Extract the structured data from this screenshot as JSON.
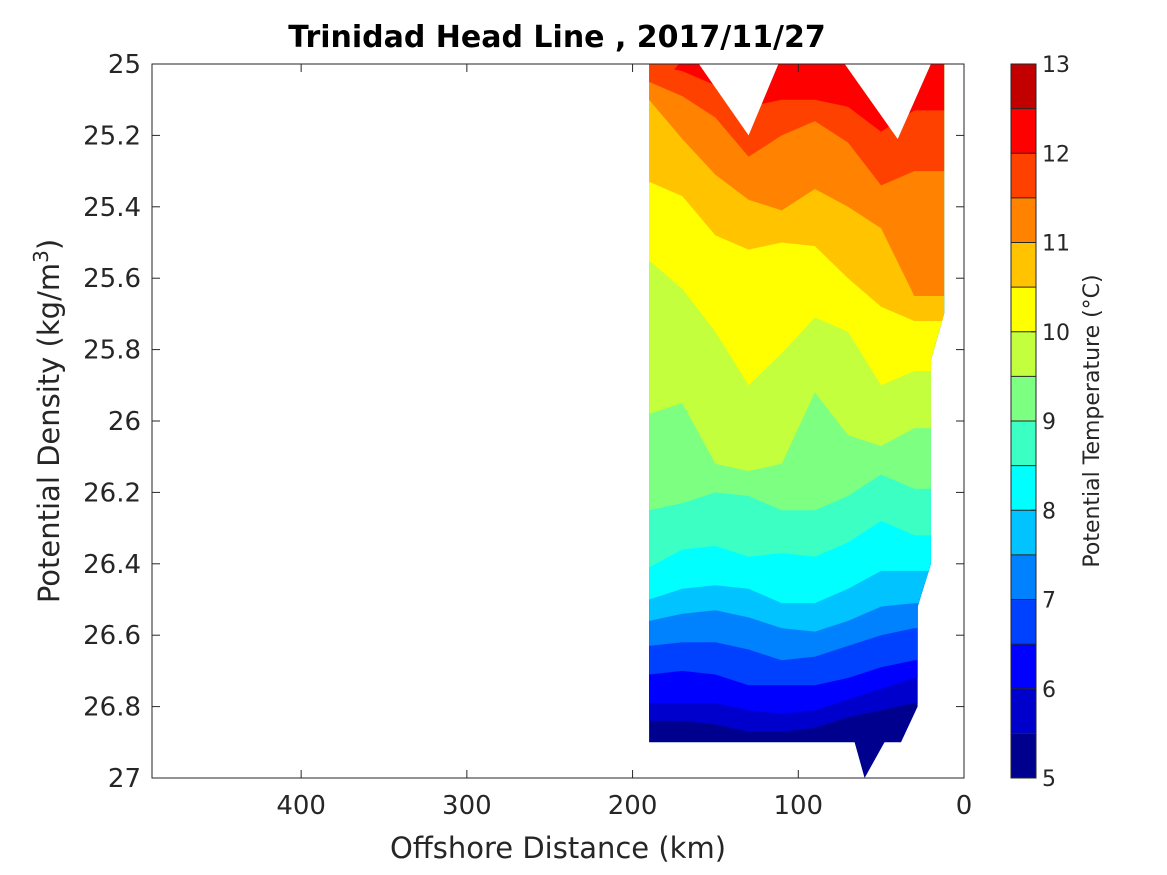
{
  "chart_data": {
    "type": "contour",
    "title": "Trinidad Head Line , 2017/11/27",
    "xlabel": "Offshore Distance (km)",
    "ylabel_main": "Potential Density (kg/m",
    "ylabel_sup": "3",
    "ylabel_close": ")",
    "x_reversed": true,
    "y_reversed": true,
    "xlim": [
      490,
      0
    ],
    "ylim": [
      25,
      27
    ],
    "xticks": [
      {
        "value": 400,
        "label": "400"
      },
      {
        "value": 300,
        "label": "300"
      },
      {
        "value": 200,
        "label": "200"
      },
      {
        "value": 100,
        "label": "100"
      },
      {
        "value": 0,
        "label": "0"
      }
    ],
    "yticks": [
      {
        "value": 25,
        "label": "25"
      },
      {
        "value": 25.2,
        "label": "25.2"
      },
      {
        "value": 25.4,
        "label": "25.4"
      },
      {
        "value": 25.6,
        "label": "25.6"
      },
      {
        "value": 25.8,
        "label": "25.8"
      },
      {
        "value": 26,
        "label": "26"
      },
      {
        "value": 26.2,
        "label": "26.2"
      },
      {
        "value": 26.4,
        "label": "26.4"
      },
      {
        "value": 26.6,
        "label": "26.6"
      },
      {
        "value": 26.8,
        "label": "26.8"
      },
      {
        "value": 27,
        "label": "27"
      }
    ],
    "colorbar": {
      "label": "Potential Temperature (°C)",
      "range": [
        5,
        13
      ],
      "levels": [
        5,
        5.5,
        6,
        6.5,
        7,
        7.5,
        8,
        8.5,
        9,
        9.5,
        10,
        10.5,
        11,
        11.5,
        12,
        12.5,
        13
      ],
      "colors": [
        "#00008f",
        "#0000cd",
        "#0000ff",
        "#0041ff",
        "#0082ff",
        "#00c3ff",
        "#00ffff",
        "#3cffc3",
        "#7dff82",
        "#c3ff3c",
        "#ffff00",
        "#ffc300",
        "#ff8200",
        "#ff4100",
        "#ff0000",
        "#c30000"
      ],
      "ticks": [
        {
          "value": 5,
          "label": "5"
        },
        {
          "value": 6,
          "label": "6"
        },
        {
          "value": 7,
          "label": "7"
        },
        {
          "value": 8,
          "label": "8"
        },
        {
          "value": 9,
          "label": "9"
        },
        {
          "value": 10,
          "label": "10"
        },
        {
          "value": 11,
          "label": "11"
        },
        {
          "value": 12,
          "label": "12"
        },
        {
          "value": 13,
          "label": "13"
        }
      ]
    },
    "columns_x": [
      190,
      170,
      150,
      130,
      110,
      90,
      70,
      50,
      30,
      12
    ],
    "boundaries": [
      {
        "level": 5.5,
        "y": [
          26.84,
          26.84,
          26.85,
          26.87,
          26.87,
          26.86,
          26.83,
          26.81,
          26.79,
          26.8
        ]
      },
      {
        "level": 6,
        "y": [
          26.79,
          26.79,
          26.79,
          26.81,
          26.82,
          26.81,
          26.78,
          26.75,
          26.72,
          26.72
        ]
      },
      {
        "level": 6.5,
        "y": [
          26.71,
          26.7,
          26.71,
          26.74,
          26.74,
          26.74,
          26.72,
          26.69,
          26.67,
          26.67
        ]
      },
      {
        "level": 7,
        "y": [
          26.63,
          26.62,
          26.62,
          26.64,
          26.67,
          26.66,
          26.63,
          26.6,
          26.58,
          26.58
        ]
      },
      {
        "level": 7.5,
        "y": [
          26.56,
          26.54,
          26.53,
          26.55,
          26.58,
          26.59,
          26.56,
          26.52,
          26.51,
          26.51
        ]
      },
      {
        "level": 8,
        "y": [
          26.5,
          26.47,
          26.46,
          26.47,
          26.51,
          26.51,
          26.47,
          26.42,
          26.42,
          26.42
        ]
      },
      {
        "level": 8.5,
        "y": [
          26.41,
          26.36,
          26.35,
          26.38,
          26.37,
          26.38,
          26.34,
          26.28,
          26.32,
          26.32
        ]
      },
      {
        "level": 9,
        "y": [
          26.25,
          26.23,
          26.2,
          26.21,
          26.25,
          26.25,
          26.21,
          26.15,
          26.19,
          26.19
        ]
      },
      {
        "level": 9.5,
        "y": [
          25.98,
          25.95,
          26.12,
          26.14,
          26.12,
          25.92,
          26.04,
          26.07,
          26.02,
          26.02
        ]
      },
      {
        "level": 10,
        "y": [
          25.55,
          25.63,
          25.75,
          25.9,
          25.81,
          25.71,
          25.75,
          25.9,
          25.86,
          25.86
        ]
      },
      {
        "level": 10.5,
        "y": [
          25.33,
          25.37,
          25.48,
          25.52,
          25.5,
          25.51,
          25.6,
          25.68,
          25.72,
          25.72
        ]
      },
      {
        "level": 11,
        "y": [
          25.1,
          25.21,
          25.31,
          25.38,
          25.41,
          25.35,
          25.4,
          25.46,
          25.65,
          25.65
        ]
      },
      {
        "level": 11.5,
        "y": [
          25.05,
          25.09,
          25.15,
          25.26,
          25.2,
          25.16,
          25.22,
          25.34,
          25.3,
          25.3
        ]
      },
      {
        "level": 12,
        "y": [
          25.0,
          25.02,
          25.06,
          25.12,
          25.1,
          25.1,
          25.12,
          25.19,
          25.13,
          25.13
        ]
      }
    ]
  }
}
